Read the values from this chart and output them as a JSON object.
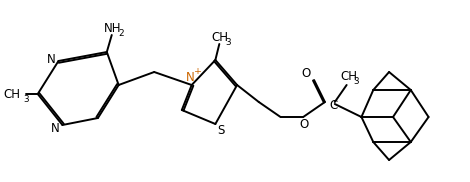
{
  "bg_color": "#ffffff",
  "line_color": "#000000",
  "line_width": 1.4,
  "font_size": 8.5,
  "figsize": [
    4.7,
    1.82
  ],
  "dpi": 100,
  "n_plus_color": "#cc6600",
  "label_color": "#000000",
  "xlim": [
    0,
    4.7
  ],
  "ylim": [
    0,
    1.82
  ]
}
